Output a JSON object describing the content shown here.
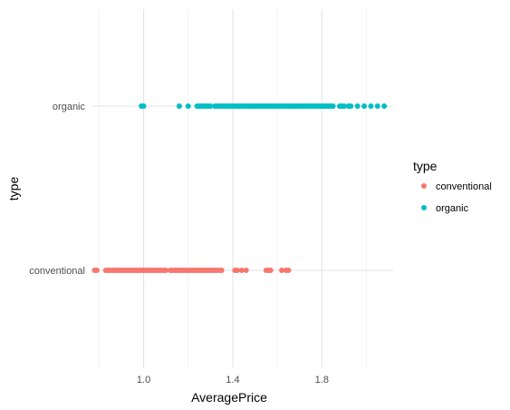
{
  "chart_data": {
    "type": "scatter",
    "xlabel": "AveragePrice",
    "ylabel": "type",
    "xlim": [
      0.77,
      2.12
    ],
    "x_ticks": [
      "1.0",
      "1.4",
      "1.8"
    ],
    "x_tick_values": [
      1.0,
      1.4,
      1.8
    ],
    "categories": [
      "conventional",
      "organic"
    ],
    "grid": true,
    "legend": {
      "title": "type",
      "placement": "right",
      "entries": [
        "conventional",
        "organic"
      ]
    },
    "series": [
      {
        "name": "conventional",
        "color": "#F8766D",
        "category": "conventional",
        "x": [
          0.78,
          0.79,
          0.83,
          0.84,
          0.85,
          0.86,
          0.87,
          0.88,
          0.89,
          0.9,
          0.91,
          0.92,
          0.93,
          0.94,
          0.95,
          0.96,
          0.97,
          0.98,
          0.99,
          1.0,
          1.01,
          1.02,
          1.03,
          1.04,
          1.05,
          1.06,
          1.07,
          1.08,
          1.09,
          1.1,
          1.12,
          1.13,
          1.14,
          1.15,
          1.16,
          1.17,
          1.18,
          1.19,
          1.2,
          1.21,
          1.22,
          1.23,
          1.24,
          1.25,
          1.26,
          1.27,
          1.28,
          1.29,
          1.3,
          1.31,
          1.32,
          1.33,
          1.34,
          1.35,
          1.41,
          1.42,
          1.44,
          1.46,
          1.55,
          1.56,
          1.57,
          1.62,
          1.64,
          1.65
        ]
      },
      {
        "name": "organic",
        "color": "#00BFC4",
        "category": "organic",
        "x": [
          0.99,
          1.0,
          1.16,
          1.2,
          1.24,
          1.25,
          1.26,
          1.27,
          1.28,
          1.29,
          1.3,
          1.32,
          1.33,
          1.34,
          1.35,
          1.36,
          1.37,
          1.38,
          1.39,
          1.4,
          1.41,
          1.42,
          1.43,
          1.44,
          1.45,
          1.46,
          1.47,
          1.48,
          1.49,
          1.5,
          1.51,
          1.52,
          1.53,
          1.54,
          1.55,
          1.56,
          1.57,
          1.58,
          1.59,
          1.6,
          1.61,
          1.62,
          1.63,
          1.64,
          1.65,
          1.66,
          1.67,
          1.68,
          1.69,
          1.7,
          1.71,
          1.72,
          1.73,
          1.74,
          1.75,
          1.76,
          1.77,
          1.78,
          1.79,
          1.8,
          1.81,
          1.82,
          1.83,
          1.84,
          1.85,
          1.88,
          1.89,
          1.9,
          1.92,
          1.93,
          1.96,
          1.99,
          2.02,
          2.05,
          2.08
        ]
      }
    ]
  }
}
